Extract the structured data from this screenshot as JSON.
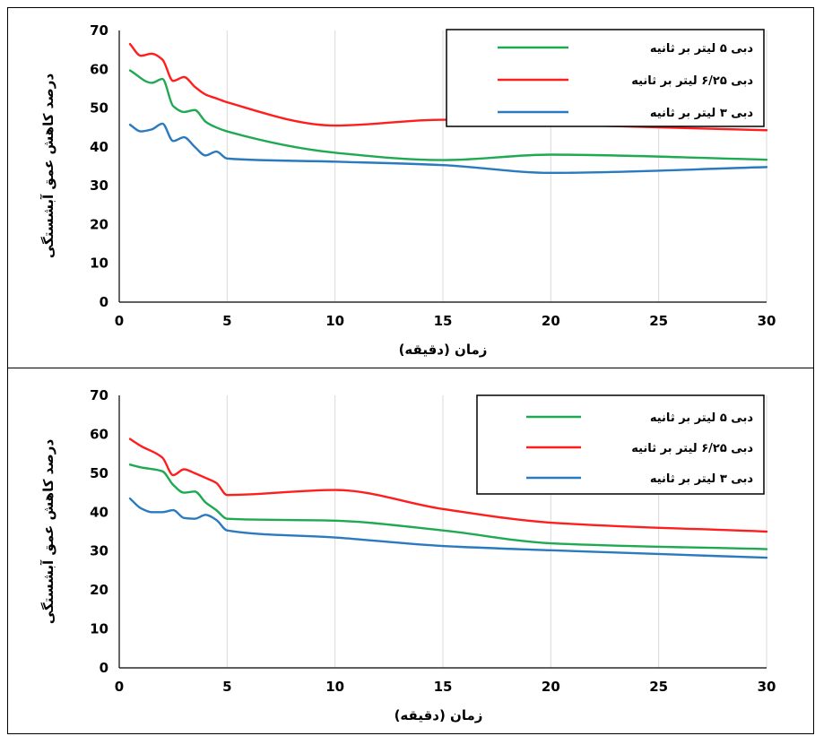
{
  "chart_data": [
    {
      "type": "line",
      "xlabel": "زمان (دقیقه)",
      "ylabel": "درصد کاهش عمق آبشستگی",
      "xlim": [
        0,
        30
      ],
      "ylim": [
        0,
        70
      ],
      "xticks": [
        "0",
        "5",
        "10",
        "15",
        "20",
        "25",
        "30"
      ],
      "yticks": [
        "0",
        "10",
        "20",
        "30",
        "40",
        "50",
        "60",
        "70"
      ],
      "grid": "vertical",
      "legend_position": "top-right",
      "series": [
        {
          "name": "دبی ۵ لیتر بر ثانیه",
          "color": "#1faa52",
          "x": [
            0.5,
            1.5,
            2,
            2.5,
            3,
            3.5,
            4,
            4.5,
            5,
            10,
            15,
            20,
            30
          ],
          "y": [
            59.7,
            56.5,
            57.5,
            50.5,
            49,
            49.5,
            46.5,
            45,
            44,
            38.5,
            36.6,
            38,
            36.7
          ]
        },
        {
          "name": "دبی ۶/۲۵ لیتر بر ثانیه",
          "color": "#ff1e1e",
          "x": [
            0.5,
            1,
            1.5,
            2,
            2.5,
            3,
            3.5,
            4,
            4.5,
            5,
            10,
            15,
            20,
            30
          ],
          "y": [
            66.5,
            63.5,
            64,
            62.5,
            57,
            58,
            55.5,
            53.5,
            52.5,
            51.5,
            45.5,
            47,
            45.8,
            44.3
          ]
        },
        {
          "name": "دبی ۳ لیتر بر ثانیه",
          "color": "#2a7abf",
          "x": [
            0.5,
            1,
            1.5,
            2,
            2.5,
            3,
            3.5,
            4,
            4.5,
            5,
            10,
            15,
            20,
            30
          ],
          "y": [
            45.7,
            44,
            44.5,
            46,
            41.5,
            42.5,
            40,
            37.8,
            38.8,
            37,
            36.2,
            35.3,
            33.3,
            34.8
          ]
        }
      ]
    },
    {
      "type": "line",
      "xlabel": "زمان (دقیقه)",
      "ylabel": "درصد کاهش عمق آبشستگی",
      "xlim": [
        0,
        30
      ],
      "ylim": [
        0,
        70
      ],
      "xticks": [
        "0",
        "5",
        "10",
        "15",
        "20",
        "25",
        "30"
      ],
      "yticks": [
        "0",
        "10",
        "20",
        "30",
        "40",
        "50",
        "60",
        "70"
      ],
      "grid": "vertical",
      "legend_position": "top-right",
      "series": [
        {
          "name": "دبی ۵ لیتر بر ثانیه",
          "color": "#1faa52",
          "x": [
            0.5,
            1,
            2,
            2.5,
            3,
            3.5,
            4,
            4.5,
            5,
            10,
            15,
            20,
            30
          ],
          "y": [
            52.2,
            51.5,
            50.5,
            47,
            45,
            45.3,
            42.5,
            40.5,
            38.3,
            37.8,
            35.3,
            32,
            30.5
          ]
        },
        {
          "name": "دبی ۶/۲۵ لیتر بر ثانیه",
          "color": "#ff1e1e",
          "x": [
            0.5,
            1,
            2,
            2.5,
            3,
            3.5,
            4,
            4.5,
            5,
            10,
            15,
            20,
            30
          ],
          "y": [
            58.8,
            57,
            54,
            49.5,
            51,
            50,
            48.8,
            47.5,
            44.4,
            45.7,
            40.8,
            37.3,
            35
          ]
        },
        {
          "name": "دبی ۳ لیتر بر ثانیه",
          "color": "#2a7abf",
          "x": [
            0.5,
            1,
            1.5,
            2,
            2.5,
            3,
            3.5,
            4,
            4.5,
            5,
            10,
            15,
            20,
            30
          ],
          "y": [
            43.5,
            41,
            40,
            40,
            40.5,
            38.5,
            38.3,
            39.3,
            38,
            35.3,
            33.5,
            31.3,
            30.2,
            28.3
          ]
        }
      ]
    }
  ]
}
